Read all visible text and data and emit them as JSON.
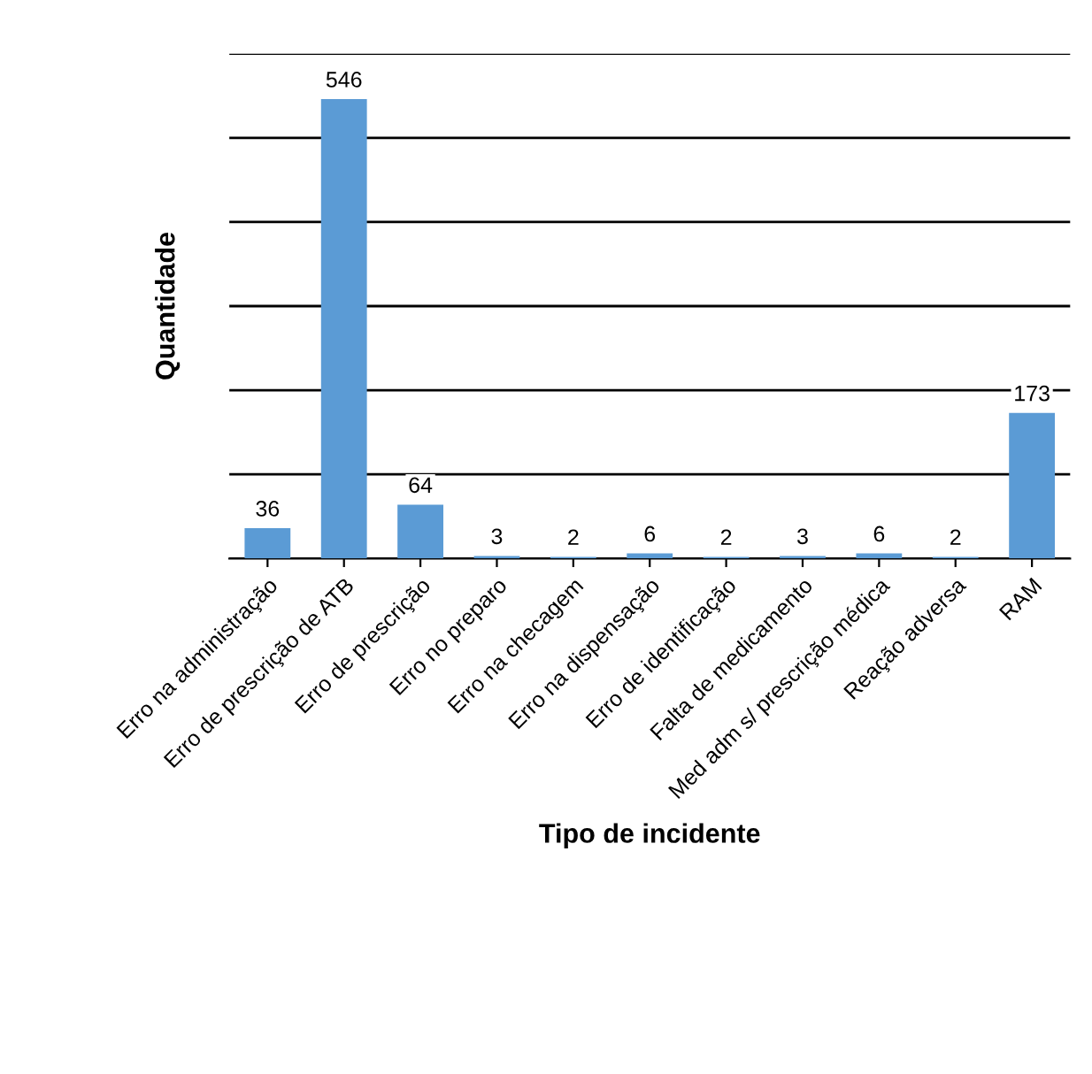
{
  "chart_data": {
    "type": "bar",
    "xlabel": "Tipo de incidente",
    "ylabel": "Quantidade",
    "categories": [
      "Erro na administração",
      "Erro de prescrição de ATB",
      "Erro de prescrição",
      "Erro no preparo",
      "Erro na checagem",
      "Erro na dispensação",
      "Erro de identificação",
      "Falta de medicamento",
      "Med adm s/ prescrição médica",
      "Reação adversa",
      "RAM"
    ],
    "values": [
      36,
      546,
      64,
      3,
      2,
      6,
      2,
      3,
      6,
      2,
      173
    ],
    "color": "#5b9bd5",
    "ylim": [
      0,
      600
    ],
    "yticks": [
      {
        "value": 0,
        "label": null
      },
      {
        "value": 100,
        "label": null
      },
      {
        "value": 200,
        "label": null
      },
      {
        "value": 300,
        "label": null
      },
      {
        "value": 400,
        "label": null
      },
      {
        "value": 500,
        "label": null
      },
      {
        "value": 600,
        "label": null
      }
    ],
    "grid": "y",
    "tick_labels": "x",
    "data_labels": true,
    "legend": false
  }
}
